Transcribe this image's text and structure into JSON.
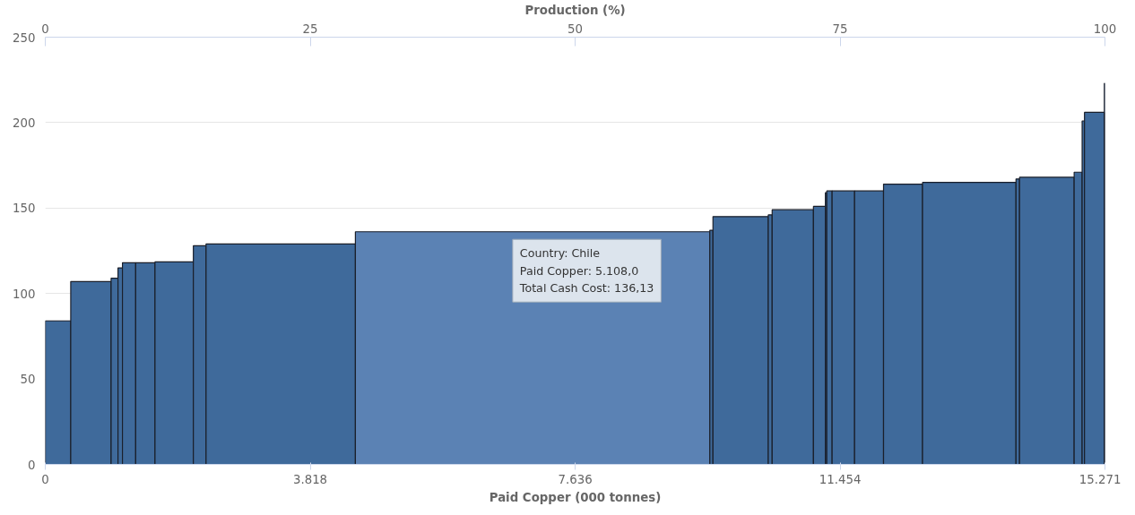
{
  "chart_data": {
    "type": "histogram",
    "xlabel": "Paid Copper (000 tonnes)",
    "x2label": "Production (%)",
    "bins": [
      0,
      367,
      949,
      1048,
      1112,
      1303,
      1581,
      2134,
      2317,
      4469,
      9577,
      9622,
      10419,
      10475,
      11070,
      11242,
      11262,
      11339,
      11663,
      12080,
      12642,
      13989,
      14040,
      14827,
      14942,
      14976,
      15262,
      15271
    ],
    "values": [
      84,
      107,
      109,
      115,
      118,
      118,
      118.5,
      128,
      129,
      136.13,
      137,
      145,
      146,
      149,
      151,
      159,
      160,
      160,
      160,
      164,
      165,
      167,
      168,
      171,
      201,
      206,
      223
    ],
    "colors": [
      "#3f6a9b",
      "#3f6a9b",
      "#3f6a9b",
      "#3f6a9b",
      "#3f6a9b",
      "#3f6a9b",
      "#3f6a9b",
      "#3f6a9b",
      "#3f6a9b",
      "#5b82b4",
      "#3f6a9b",
      "#3f6a9b",
      "#3f6a9b",
      "#3f6a9b",
      "#3f6a9b",
      "#3f6a9b",
      "#3f6a9b",
      "#3f6a9b",
      "#3f6a9b",
      "#3f6a9b",
      "#3f6a9b",
      "#3f6a9b",
      "#3f6a9b",
      "#3f6a9b",
      "#3f6a9b",
      "#3f6a9b",
      "#3f6a9b"
    ],
    "xlim": [
      0,
      15271
    ],
    "xticks": [
      0,
      {
        "value": 3818,
        "label": "3.818"
      },
      {
        "value": 7636,
        "label": "7.636"
      },
      {
        "value": 11454,
        "label": "11.454"
      },
      {
        "value": 15271,
        "label": "15.271"
      }
    ],
    "x2lim": [
      0,
      100
    ],
    "x2ticks": [
      0,
      25,
      50,
      75,
      100
    ],
    "ylim": [
      0,
      250
    ],
    "yticks": [
      0,
      50,
      100,
      150,
      200,
      250
    ],
    "grid": "y",
    "annotations": [
      "Country: Chile\nPaid Copper: 5.108,0\nTotal Cash Cost: 136,13"
    ]
  }
}
